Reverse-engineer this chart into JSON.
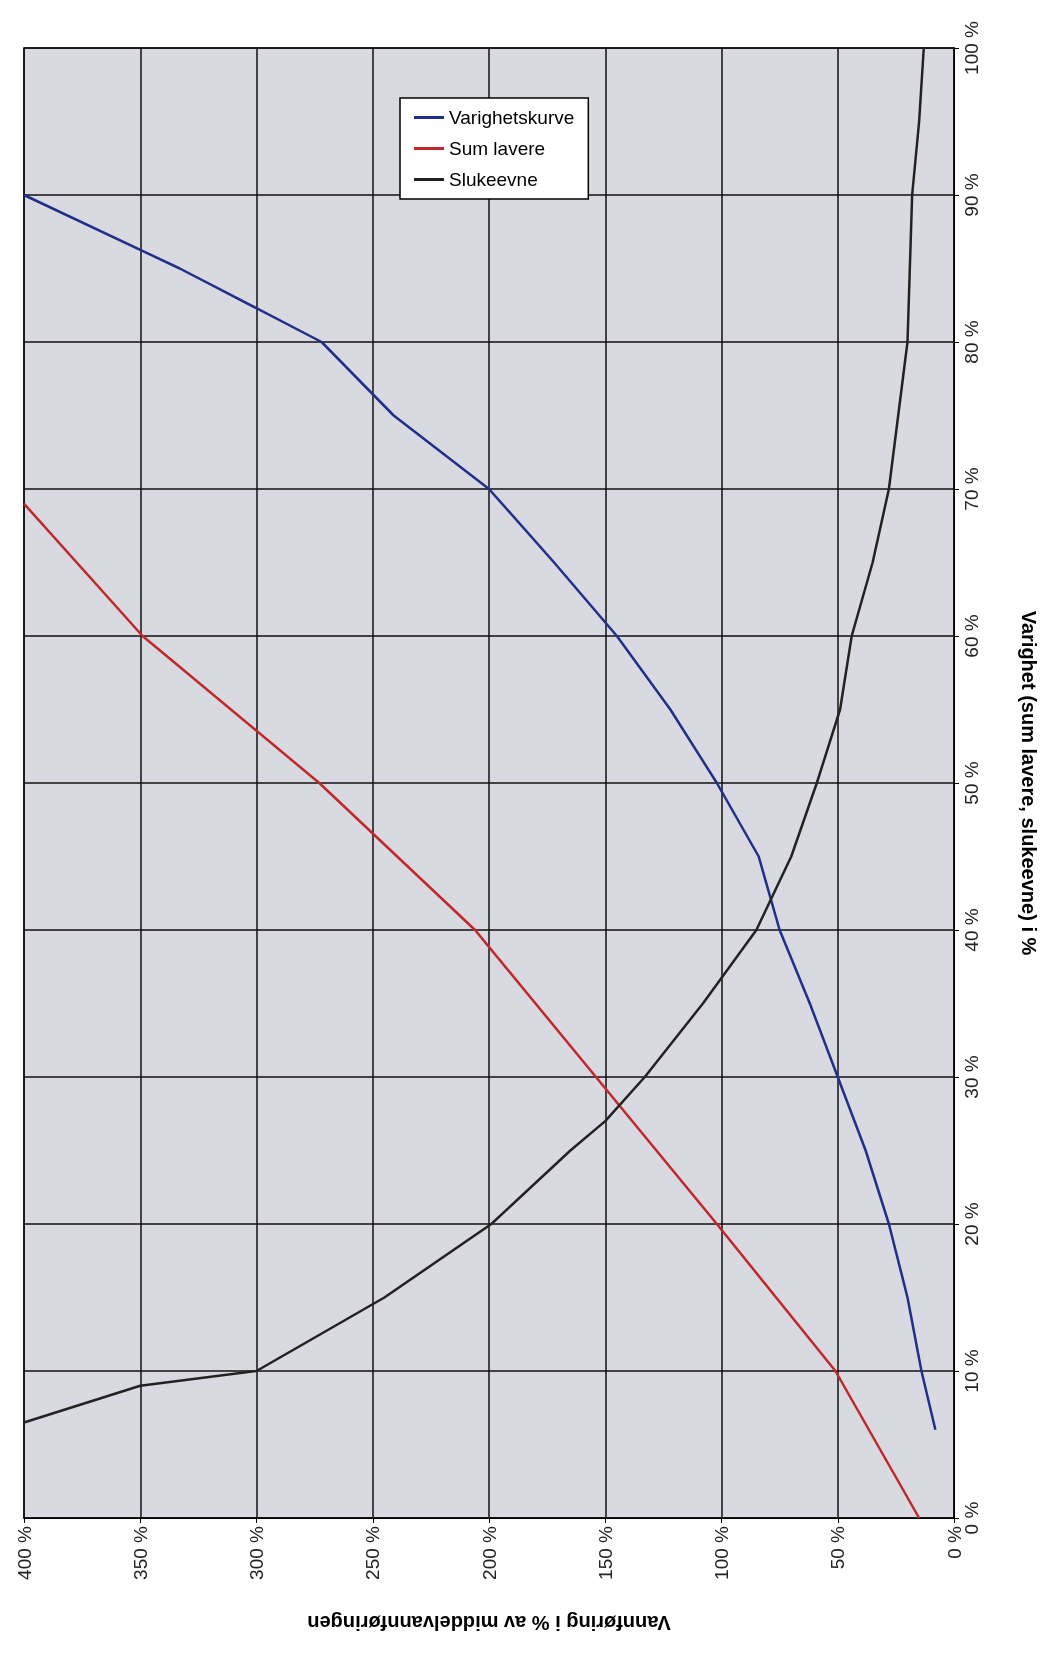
{
  "chart_data": {
    "type": "line",
    "xlabel": "Vannføring i % av middelvannføringen",
    "ylabel": "Varighet (sum lavere, slukeevne) i %",
    "xlim": [
      400,
      0
    ],
    "ylim": [
      0,
      100
    ],
    "xticks": [
      {
        "value": 0,
        "label": "0 %"
      },
      {
        "value": 50,
        "label": "50 %"
      },
      {
        "value": 100,
        "label": "100 %"
      },
      {
        "value": 150,
        "label": "150 %"
      },
      {
        "value": 200,
        "label": "200 %"
      },
      {
        "value": 250,
        "label": "250 %"
      },
      {
        "value": 300,
        "label": "300 %"
      },
      {
        "value": 350,
        "label": "350 %"
      },
      {
        "value": 400,
        "label": "400 %"
      }
    ],
    "yticks": [
      {
        "value": 0,
        "label": "0 %"
      },
      {
        "value": 10,
        "label": "10 %"
      },
      {
        "value": 20,
        "label": "20 %"
      },
      {
        "value": 30,
        "label": "30 %"
      },
      {
        "value": 40,
        "label": "40 %"
      },
      {
        "value": 50,
        "label": "50 %"
      },
      {
        "value": 60,
        "label": "60 %"
      },
      {
        "value": 70,
        "label": "70 %"
      },
      {
        "value": 80,
        "label": "80 %"
      },
      {
        "value": 90,
        "label": "90 %"
      },
      {
        "value": 100,
        "label": "100 %"
      }
    ],
    "grid": true,
    "legend": "top",
    "marker": "none",
    "line_style": "solid",
    "series": [
      {
        "name": "Varighetskurve",
        "color": "#1f2f8a",
        "values": [
          6,
          10,
          15,
          20,
          25,
          30,
          35,
          40,
          45,
          50,
          55,
          60,
          65,
          70,
          75,
          80,
          85,
          90
        ],
        "x": [
          8,
          14,
          20,
          28,
          38,
          50,
          62,
          75,
          84,
          102,
          122,
          145,
          172,
          200,
          241,
          272,
          333,
          400
        ]
      },
      {
        "name": "Sum lavere",
        "color": "#c0282a",
        "values": [
          0,
          10,
          20,
          30,
          40,
          50,
          60,
          69
        ],
        "x": [
          15,
          51,
          102,
          154,
          206,
          273,
          349,
          400
        ]
      },
      {
        "name": "Slukeevne",
        "color": "#222222",
        "values": [
          6.5,
          9,
          10,
          15,
          20,
          25,
          27,
          30,
          35,
          40,
          45,
          50,
          55,
          60,
          65,
          70,
          75,
          80,
          85,
          90,
          95,
          100
        ],
        "x": [
          400,
          350,
          300,
          245,
          199,
          165,
          150,
          133,
          108,
          85,
          70,
          59,
          49,
          44,
          35,
          28,
          24,
          20,
          19,
          18,
          15,
          13
        ]
      }
    ]
  }
}
